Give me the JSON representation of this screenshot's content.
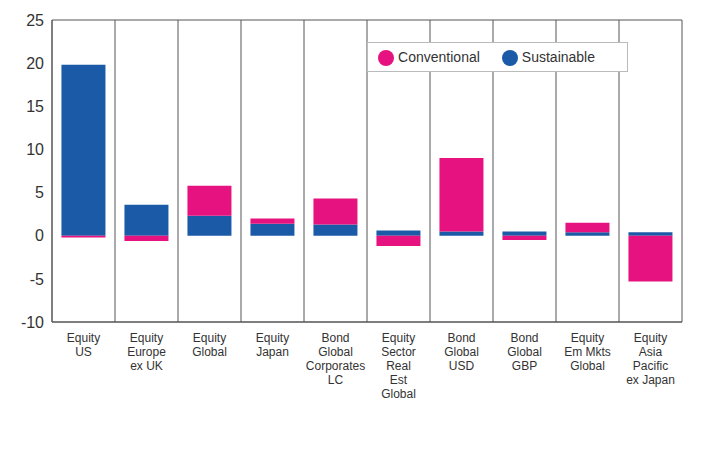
{
  "chart_data": {
    "type": "bar",
    "stacked": true,
    "categories": [
      "Equity\nUS",
      "Equity\nEurope\nex UK",
      "Equity\nGlobal",
      "Equity\nJapan",
      "Bond\nGlobal\nCorporates\nLC",
      "Equity\nSector\nReal\nEst\nGlobal",
      "Bond\nGlobal\nUSD",
      "Bond\nGlobal\nGBP",
      "Equity\nEm Mkts\nGlobal",
      "Equity\nAsia\nPacific\nex Japan"
    ],
    "series": [
      {
        "name": "Sustainable",
        "color": "#1b5aa7",
        "values": [
          19.8,
          3.6,
          2.3,
          1.4,
          1.3,
          0.6,
          0.5,
          0.5,
          0.4,
          0.4
        ]
      },
      {
        "name": "Conventional",
        "color": "#e6127f",
        "values": [
          -0.2,
          -0.6,
          3.5,
          0.6,
          3.0,
          -1.2,
          8.5,
          -0.5,
          1.1,
          -5.3
        ]
      }
    ],
    "ylim": [
      -10,
      25
    ],
    "yticks": [
      -10,
      -5,
      0,
      5,
      10,
      15,
      20,
      25
    ],
    "grid": true,
    "legend": "top right"
  }
}
